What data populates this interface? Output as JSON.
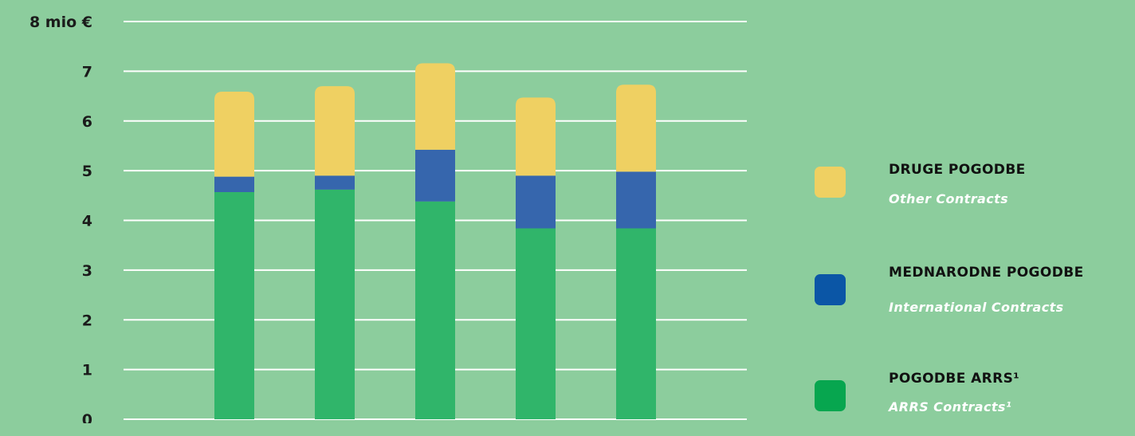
{
  "chart_data": {
    "type": "bar",
    "stacked": true,
    "categories": [
      "",
      "",
      "",
      "",
      ""
    ],
    "series": [
      {
        "name": "POGODBE ARRS¹",
        "values": [
          4.57,
          4.62,
          4.38,
          3.84,
          3.84
        ],
        "color": "#30b56a"
      },
      {
        "name": "MEDNARODNE POGODBE",
        "values": [
          0.31,
          0.28,
          1.04,
          1.06,
          1.14
        ],
        "color": "#3666ad"
      },
      {
        "name": "DRUGE POGODBE",
        "values": [
          1.71,
          1.8,
          1.74,
          1.57,
          1.75
        ],
        "color": "#efd062"
      }
    ],
    "y_ticks": [
      "0",
      "1",
      "2",
      "3",
      "4",
      "5",
      "6",
      "7",
      "8 mio €"
    ],
    "ylim": [
      0,
      8
    ],
    "grid": true,
    "legend_position": "right"
  },
  "legend": [
    {
      "title": "DRUGE POGODBE",
      "subtitle": "Other Contracts",
      "color": "#efd062"
    },
    {
      "title": "MEDNARODNE POGODBE",
      "subtitle": "International Contracts",
      "color": "#0b56a6"
    },
    {
      "title": "POGODBE ARRS¹",
      "subtitle": "ARRS Contracts¹",
      "color": "#07a64f"
    }
  ],
  "colors": {
    "background": "#8ccd9d",
    "gridline": "#ffffff"
  }
}
